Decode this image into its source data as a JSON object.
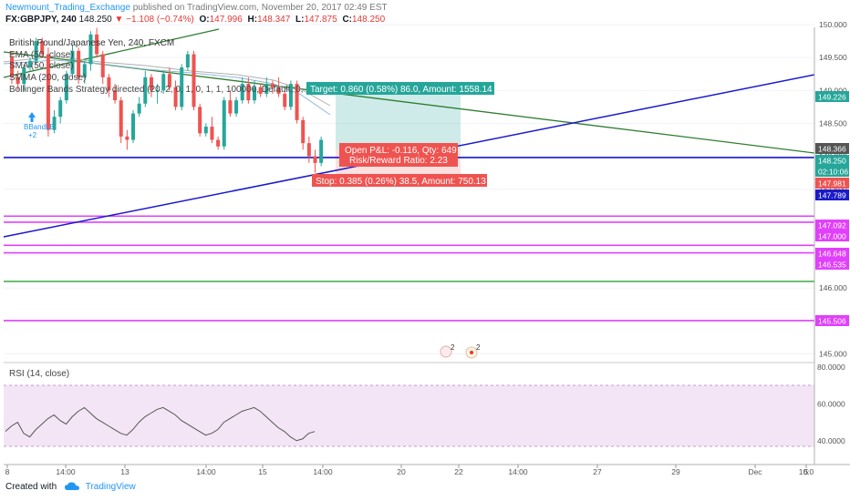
{
  "header": {
    "author": "Newmount_Trading_Exchange",
    "published": "published on TradingView.com, November 20, 2017 02:49 EST",
    "symbol": "FX:GBPJPY, 240",
    "last": "148.250",
    "change_arrow": "▼",
    "change": "−1.108 (−0.74%)",
    "o_label": "O:",
    "o": "147.996",
    "h_label": "H:",
    "h": "148.347",
    "l_label": "L:",
    "l": "147.875",
    "c_label": "C:",
    "c": "148.250"
  },
  "legend": {
    "title": "British Pound/Japanese Yen, 240, FXCM",
    "line1": "EMA (50, close)",
    "line2": "SMA (50, close)",
    "line3": "SMMA (200, close)",
    "line4": "Bollinger Bands Strategy directed (20, 2, 0, 1, 0, 1, 1, 100000, Default, 0, percent"
  },
  "position": {
    "target": "Target: 0.860 (0.58%) 86.0, Amount: 1558.14",
    "open_pl": "Open P&L: -0.116, Qty: 649",
    "rr": "Risk/Reward Ratio: 2.23",
    "stop": "Stop: 0.385 (0.26%) 38.5, Amount: 750.13"
  },
  "signal": {
    "label": "BBandLE",
    "count": "+2"
  },
  "events": [
    {
      "count": "2"
    },
    {
      "count": "2"
    }
  ],
  "rsi": {
    "label": "RSI (14, close)"
  },
  "footer": {
    "created": "Created with",
    "brand": "TradingView"
  },
  "colors": {
    "up": "#26a69a",
    "down": "#ef5350",
    "target": "#26a69a",
    "stop": "#ef5350",
    "trend_green": "#2e7d32",
    "trend_blue": "#1a1ac8",
    "magenta": "#e040fb",
    "rsi_fill": "#f3e5f5",
    "rsi_line": "#555555"
  },
  "chart_data": [
    {
      "type": "candlestick",
      "title": "British Pound/Japanese Yen, 240, FXCM",
      "ylim": [
        144.8,
        150.15
      ],
      "y_ticks": [
        "150.000",
        "149.500",
        "149.000",
        "148.500",
        "148.000",
        "147.500",
        "147.000",
        "146.500",
        "146.000",
        "145.500",
        "145.000"
      ],
      "x_ticks": [
        "8",
        "14:00",
        "13",
        "14:00",
        "15",
        "14:00",
        "20",
        "22",
        "14:00",
        "27",
        "29",
        "Dec",
        "5",
        "10:0"
      ],
      "candles": [
        [
          149.5,
          149.6,
          149.1,
          149.2
        ],
        [
          149.2,
          149.3,
          149.0,
          149.1
        ],
        [
          149.1,
          149.4,
          149.0,
          149.35
        ],
        [
          149.35,
          149.5,
          149.3,
          149.45
        ],
        [
          149.45,
          149.8,
          149.4,
          149.75
        ],
        [
          149.75,
          149.8,
          149.5,
          149.55
        ],
        [
          149.55,
          149.65,
          148.3,
          148.4
        ],
        [
          148.4,
          148.7,
          148.35,
          148.6
        ],
        [
          148.6,
          148.9,
          148.5,
          148.85
        ],
        [
          148.85,
          149.3,
          148.8,
          149.25
        ],
        [
          149.25,
          149.7,
          149.2,
          149.6
        ],
        [
          149.6,
          149.65,
          149.1,
          149.2
        ],
        [
          149.2,
          149.45,
          149.1,
          149.4
        ],
        [
          149.4,
          149.9,
          149.3,
          149.85
        ],
        [
          149.85,
          149.95,
          149.5,
          149.55
        ],
        [
          149.55,
          149.6,
          149.1,
          149.2
        ],
        [
          149.2,
          149.25,
          148.9,
          149.0
        ],
        [
          149.0,
          149.1,
          148.8,
          148.85
        ],
        [
          148.85,
          148.9,
          148.2,
          148.3
        ],
        [
          148.3,
          148.4,
          148.1,
          148.25
        ],
        [
          148.25,
          148.7,
          148.2,
          148.65
        ],
        [
          148.65,
          148.9,
          148.6,
          148.8
        ],
        [
          148.8,
          149.3,
          148.75,
          149.2
        ],
        [
          149.2,
          149.25,
          148.9,
          149.0
        ],
        [
          149.0,
          149.1,
          148.8,
          149.0
        ],
        [
          149.0,
          149.3,
          148.95,
          149.25
        ],
        [
          149.25,
          149.35,
          149.0,
          149.05
        ],
        [
          149.05,
          149.15,
          148.7,
          148.75
        ],
        [
          148.75,
          149.4,
          148.7,
          149.35
        ],
        [
          149.35,
          149.6,
          149.3,
          149.55
        ],
        [
          149.55,
          149.6,
          148.7,
          148.75
        ],
        [
          148.75,
          148.8,
          148.3,
          148.35
        ],
        [
          148.35,
          148.5,
          148.3,
          148.45
        ],
        [
          148.45,
          148.6,
          148.2,
          148.25
        ],
        [
          148.25,
          148.3,
          148.1,
          148.15
        ],
        [
          148.15,
          148.9,
          148.1,
          148.85
        ],
        [
          148.85,
          149.0,
          148.6,
          148.65
        ],
        [
          148.65,
          148.9,
          148.6,
          148.85
        ],
        [
          148.85,
          149.2,
          148.8,
          149.1
        ],
        [
          149.1,
          149.2,
          148.8,
          148.85
        ],
        [
          148.85,
          149.15,
          148.8,
          149.05
        ],
        [
          149.05,
          149.1,
          148.9,
          148.95
        ],
        [
          148.95,
          149.2,
          148.9,
          149.1
        ],
        [
          149.1,
          149.15,
          148.95,
          149.05
        ],
        [
          149.05,
          149.2,
          148.9,
          148.95
        ],
        [
          148.95,
          149.0,
          148.7,
          148.75
        ],
        [
          148.75,
          149.15,
          148.7,
          149.1
        ],
        [
          149.1,
          149.15,
          148.5,
          148.55
        ],
        [
          148.55,
          148.6,
          148.1,
          148.2
        ],
        [
          148.2,
          148.3,
          147.9,
          148.0
        ],
        [
          148.0,
          148.1,
          147.75,
          147.9
        ],
        [
          147.9,
          148.3,
          147.85,
          148.25
        ]
      ],
      "horizontal_levels": [
        {
          "price": 147.981,
          "color": "#1a1ac8"
        },
        {
          "price": 147.092,
          "color": "#e040fb"
        },
        {
          "price": 147.0,
          "color": "#e040fb"
        },
        {
          "price": 146.648,
          "color": "#e040fb"
        },
        {
          "price": 146.535,
          "color": "#e040fb"
        },
        {
          "price": 145.506,
          "color": "#e040fb"
        },
        {
          "price": 146.1,
          "color": "#4caf50"
        }
      ],
      "price_labels": [
        {
          "text": "149.226",
          "color": "#26a69a"
        },
        {
          "text": "148.366",
          "color": "#555555"
        },
        {
          "text": "148.250",
          "color": "#26a69a"
        },
        {
          "text": "02:10:06",
          "color": "#26a69a"
        },
        {
          "text": "147.981",
          "color": "#ef5350"
        },
        {
          "text": "147.789",
          "color": "#1a1ac8"
        },
        {
          "text": "147.092",
          "color": "#e040fb"
        },
        {
          "text": "147.000",
          "color": "#e040fb"
        },
        {
          "text": "146.648",
          "color": "#e040fb"
        },
        {
          "text": "146.535",
          "color": "#e040fb"
        },
        {
          "text": "145.506",
          "color": "#e040fb"
        }
      ]
    },
    {
      "type": "line",
      "title": "RSI (14, close)",
      "ylim": [
        27,
        82
      ],
      "y_ticks": [
        "80.0000",
        "60.0000",
        "40.0000"
      ],
      "values": [
        45,
        48,
        50,
        44,
        42,
        46,
        49,
        52,
        54,
        51,
        49,
        53,
        56,
        58,
        55,
        52,
        50,
        48,
        46,
        44,
        43,
        46,
        50,
        53,
        55,
        57,
        58,
        56,
        54,
        51,
        49,
        47,
        45,
        43,
        44,
        46,
        50,
        52,
        54,
        56,
        57,
        58,
        56,
        53,
        50,
        47,
        45,
        42,
        40,
        41,
        44,
        45
      ]
    }
  ]
}
